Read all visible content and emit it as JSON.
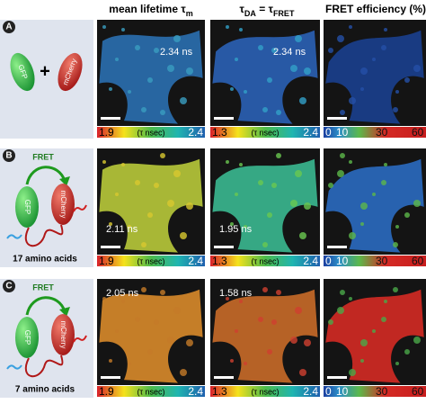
{
  "headers": [
    [
      {
        "t": "mean lifetime τ"
      },
      {
        "t": "m",
        "sub": true
      }
    ],
    [
      {
        "t": "τ"
      },
      {
        "t": "DA",
        "sub": true
      },
      {
        "t": " = τ"
      },
      {
        "t": "FRET",
        "sub": true
      }
    ],
    [
      {
        "t": "FRET efficiency (%)"
      }
    ]
  ],
  "rows": [
    {
      "label": "A",
      "diagram": {
        "left": "GFP",
        "plus": "+",
        "right": "mCherry"
      },
      "annotations": [
        "2.34 ns",
        "2.34 ns"
      ],
      "colorbars": [
        [
          "1.9",
          "(τ nsec)",
          "2.4"
        ],
        [
          "1.3",
          "(τ nsec)",
          "2.4"
        ],
        [
          "0",
          "10",
          "30",
          "60"
        ]
      ]
    },
    {
      "label": "B",
      "diagram": {
        "fret": "FRET",
        "left": "GFP",
        "right": "mCherry",
        "caption": "17 amino acids"
      },
      "annotations": [
        "2.11 ns",
        "1.95 ns"
      ],
      "colorbars": [
        [
          "1.9",
          "(τ nsec)",
          "2.4"
        ],
        [
          "1.3",
          "(τ nsec)",
          "2.4"
        ],
        [
          "0",
          "10",
          "30",
          "60"
        ]
      ]
    },
    {
      "label": "C",
      "diagram": {
        "fret": "FRET",
        "left": "GFP",
        "right": "mCherry",
        "caption": "7 amino acids"
      },
      "annotations": [
        "2.05 ns",
        "1.58 ns"
      ],
      "colorbars": [
        [
          "1.9",
          "(τ nsec)",
          "2.4"
        ],
        [
          "1.3",
          "(τ nsec)",
          "2.4"
        ],
        [
          "0",
          "10",
          "30",
          "60"
        ]
      ]
    }
  ]
}
